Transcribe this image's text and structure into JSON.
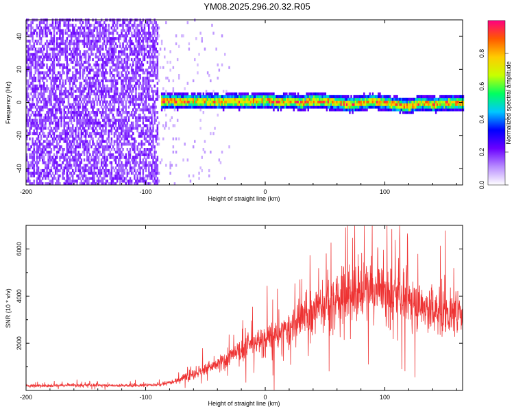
{
  "title": "YM08.2025.296.20.32.R05",
  "chart_data": [
    {
      "type": "heatmap",
      "xlabel": "Height of straight line (km)",
      "ylabel": "Frequency (Hz)",
      "xlim": [
        -200,
        165
      ],
      "ylim": [
        -50,
        50
      ],
      "xticks": [
        -200,
        -100,
        0,
        100
      ],
      "yticks": [
        -40,
        -20,
        0,
        20,
        40
      ],
      "colorbar": {
        "label": "Normalized spectral amplitude",
        "range": [
          0,
          1
        ],
        "ticks": [
          0.0,
          0.2,
          0.4,
          0.6,
          0.8
        ],
        "colors": [
          "#ffffff",
          "#b88cff",
          "#6a00ff",
          "#0000ff",
          "#00c8ff",
          "#00ff60",
          "#c8ff00",
          "#ffcc00",
          "#ff5a00",
          "#ff0080"
        ]
      },
      "signal_ridge": {
        "x": [
          -88,
          -70,
          -50,
          -30,
          -10,
          0,
          10,
          20,
          30,
          40,
          50,
          60,
          70,
          80,
          90,
          100,
          110,
          120,
          130,
          140,
          150,
          165
        ],
        "frequency": [
          0,
          0,
          0,
          0,
          0,
          0.5,
          -0.5,
          0,
          -1,
          0.5,
          0,
          -1,
          -2,
          -1,
          0,
          -1,
          -2,
          -3,
          -1,
          -2,
          -1,
          -1
        ]
      },
      "noise_region": {
        "x_from": -200,
        "x_to": -90
      }
    },
    {
      "type": "line",
      "xlabel": "Height of straight line (km)",
      "ylabel": "SNR (10 * v/v)",
      "xlim": [
        -200,
        165
      ],
      "ylim": [
        0,
        7000
      ],
      "xticks": [
        -200,
        -100,
        0,
        100
      ],
      "yticks": [
        2000,
        4000,
        6000
      ],
      "line_color": "#ee3333",
      "x": [
        -200,
        -180,
        -160,
        -140,
        -120,
        -100,
        -90,
        -80,
        -70,
        -60,
        -50,
        -40,
        -30,
        -20,
        -10,
        0,
        10,
        20,
        30,
        40,
        50,
        60,
        70,
        80,
        90,
        100,
        110,
        120,
        130,
        140,
        150,
        165
      ],
      "y": [
        200,
        200,
        220,
        220,
        210,
        220,
        250,
        350,
        500,
        700,
        900,
        1100,
        1400,
        1700,
        2000,
        2200,
        2300,
        2600,
        3000,
        3400,
        3700,
        3900,
        4100,
        4300,
        4200,
        4100,
        4000,
        3800,
        3600,
        3400,
        3300,
        3200
      ]
    }
  ]
}
